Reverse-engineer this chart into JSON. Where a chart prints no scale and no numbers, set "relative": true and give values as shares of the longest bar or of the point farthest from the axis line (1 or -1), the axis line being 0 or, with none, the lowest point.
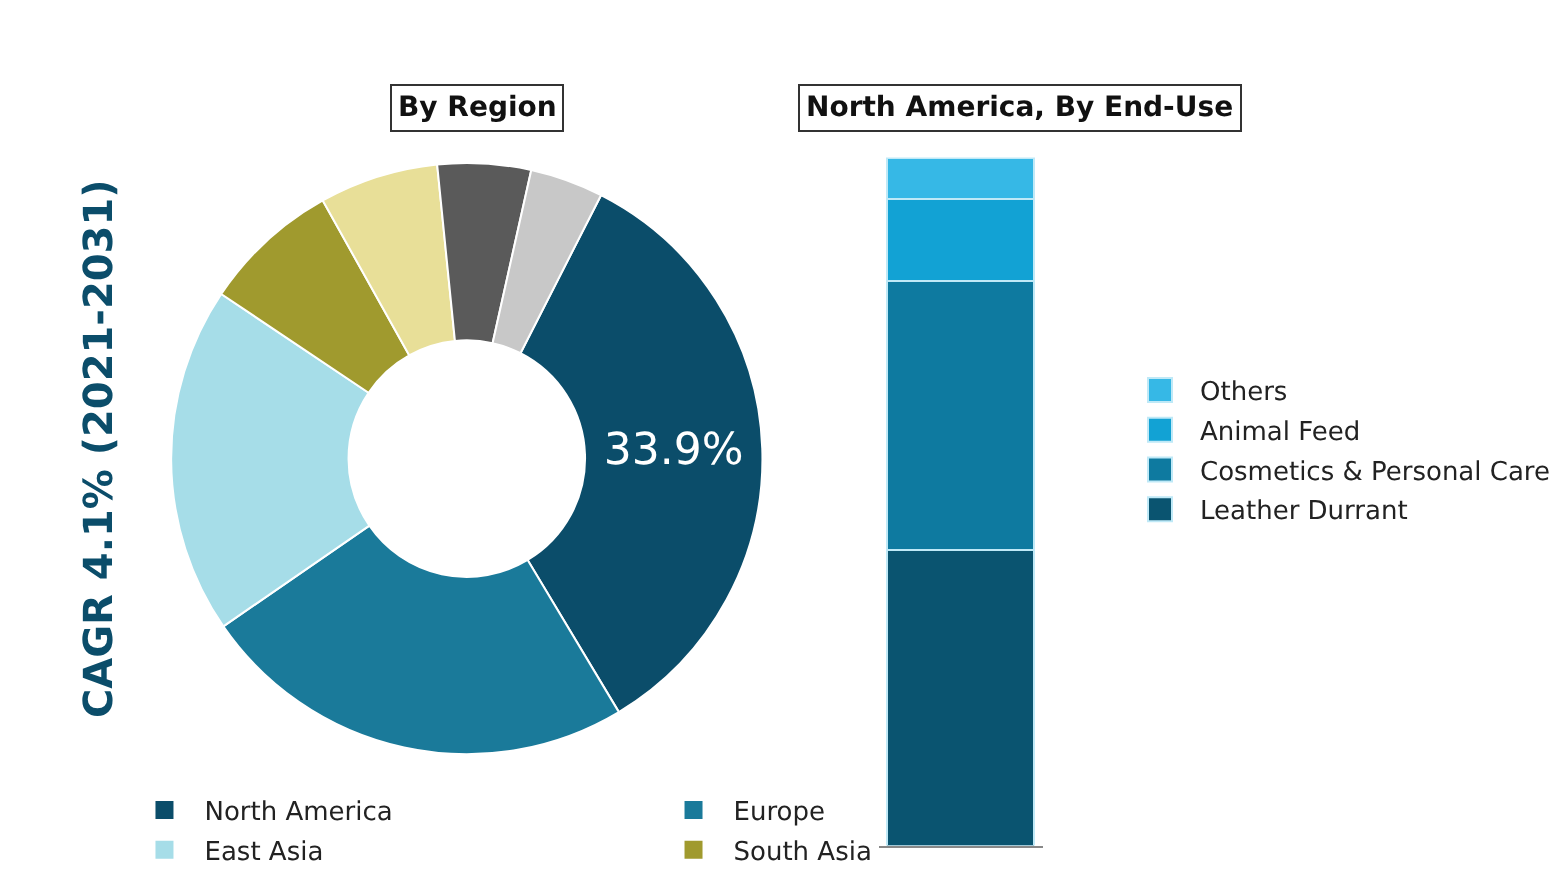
{
  "chart_data": [
    {
      "type": "donut",
      "title": "By Region",
      "categories": [
        "North America",
        "Europe",
        "East Asia",
        "South Asia",
        null,
        null,
        null
      ],
      "values": [
        33.9,
        24,
        19,
        7.5,
        6.5,
        5.1,
        4
      ],
      "colors": [
        "#0b4d6a",
        "#1a7a9a",
        "#a6dde8",
        "#a09a2e",
        "#e8df98",
        "#5a5a5a",
        "#c8c8c8"
      ],
      "value_labels": [
        "33.9%",
        null,
        null,
        null,
        null,
        null,
        null
      ],
      "annotations": [
        "CAGR 4.1% (2021-2031)"
      ],
      "legend": "bottom"
    },
    {
      "type": "bar",
      "title": "North America, By End-Use",
      "stacked": true,
      "relative": true,
      "categories": [
        null
      ],
      "legend": "right",
      "series": [
        {
          "name": "Leather Durrant",
          "color": "#0a5470",
          "values": [
            0.43
          ]
        },
        {
          "name": "Cosmetics & Personal Care",
          "color": "#0e7aa0",
          "values": [
            0.39
          ]
        },
        {
          "name": "Animal Feed",
          "color": "#12a2d4",
          "values": [
            0.12
          ]
        },
        {
          "name": "Others",
          "color": "#36b8e6",
          "values": [
            0.06
          ]
        }
      ]
    }
  ]
}
